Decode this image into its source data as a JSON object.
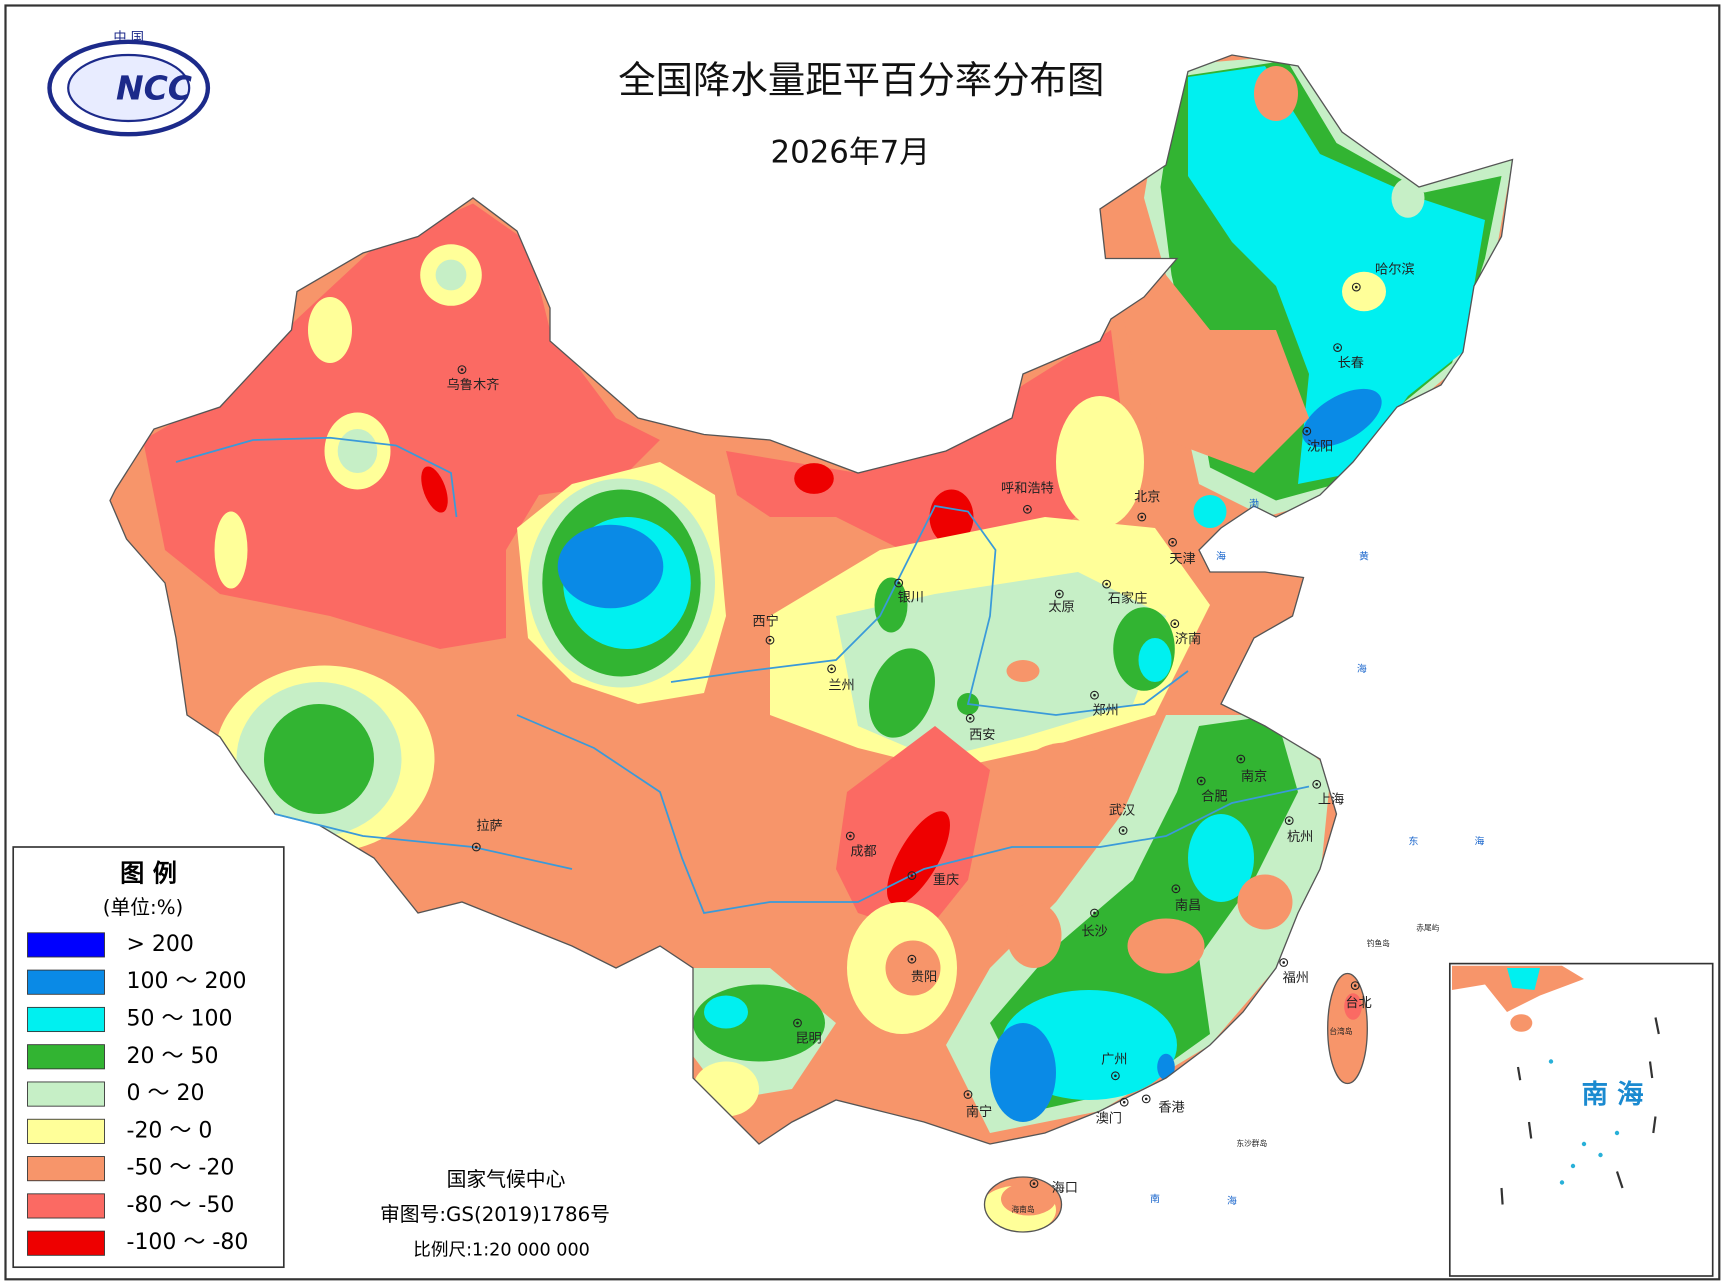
{
  "header": {
    "title": "全国降水量距平百分率分布图",
    "subtitle": "2026年7月"
  },
  "logo": {
    "top": "中 国",
    "text": "NCC"
  },
  "legend": {
    "title": "图 例",
    "unit": "(单位:%)",
    "items": [
      {
        "label": "> 200",
        "color": "#0000ff"
      },
      {
        "label": "100 ～ 200",
        "color": "#0a8ae6"
      },
      {
        "label": "50 ～ 100",
        "color": "#00f0f0"
      },
      {
        "label": "20 ～ 50",
        "color": "#32b432"
      },
      {
        "label": "0 ～ 20",
        "color": "#c6efc6"
      },
      {
        "label": "-20 ～ 0",
        "color": "#ffff99"
      },
      {
        "label": "-50 ～ -20",
        "color": "#f7956a"
      },
      {
        "label": "-80 ～ -50",
        "color": "#fb6a63"
      },
      {
        "label": "-100 ～ -80",
        "color": "#ee0000"
      }
    ]
  },
  "cities": [
    "乌鲁木齐",
    "哈尔滨",
    "长春",
    "沈阳",
    "呼和浩特",
    "北京",
    "天津",
    "银川",
    "太原",
    "石家庄",
    "西宁",
    "济南",
    "兰州",
    "郑州",
    "西安",
    "南京",
    "合肥",
    "上海",
    "拉萨",
    "武汉",
    "成都",
    "杭州",
    "重庆",
    "南昌",
    "长沙",
    "贵阳",
    "福州",
    "台北",
    "昆明",
    "广州",
    "南宁",
    "澳门",
    "香港",
    "海口"
  ],
  "islands": [
    "台湾岛",
    "海南岛",
    "东沙群岛",
    "钓鱼岛",
    "赤尾屿"
  ],
  "sea_labels": [
    "渤",
    "海",
    "黄",
    "海",
    "东",
    "海",
    "南",
    "海"
  ],
  "inset": {
    "label": "南 海"
  },
  "footer": {
    "org": "国家气候中心",
    "approval": "审图号:GS(2019)1786号",
    "scale": "比例尺:1:20 000 000"
  }
}
